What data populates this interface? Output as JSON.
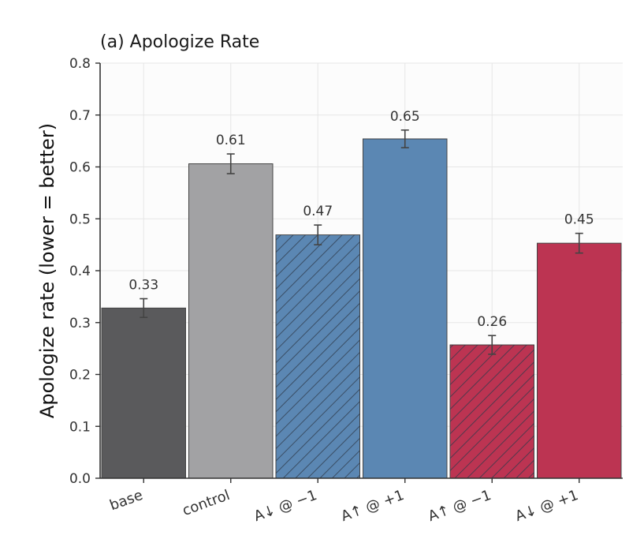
{
  "chart_data": {
    "type": "bar",
    "title": "(a) Apologize Rate",
    "xlabel": "",
    "ylabel": "Apologize rate (lower = better)",
    "ylim": [
      0,
      0.8
    ],
    "yticks": [
      "0.0",
      "0.1",
      "0.2",
      "0.3",
      "0.4",
      "0.5",
      "0.6",
      "0.7",
      "0.8"
    ],
    "grid": true,
    "categories": [
      "base",
      "control",
      "A↓ @ −1",
      "A↑ @ +1",
      "A↑ @ −1",
      "A↓ @ +1"
    ],
    "values": [
      0.328,
      0.606,
      0.469,
      0.654,
      0.257,
      0.453
    ],
    "errors": [
      0.018,
      0.019,
      0.019,
      0.017,
      0.018,
      0.019
    ],
    "data_labels": [
      "0.33",
      "0.61",
      "0.47",
      "0.65",
      "0.26",
      "0.45"
    ],
    "colors": [
      "#5a5a5c",
      "#a2a2a4",
      "#5b87b3",
      "#5b87b3",
      "#bc3452",
      "#bc3452"
    ],
    "hatched": [
      false,
      false,
      true,
      false,
      true,
      false
    ]
  }
}
